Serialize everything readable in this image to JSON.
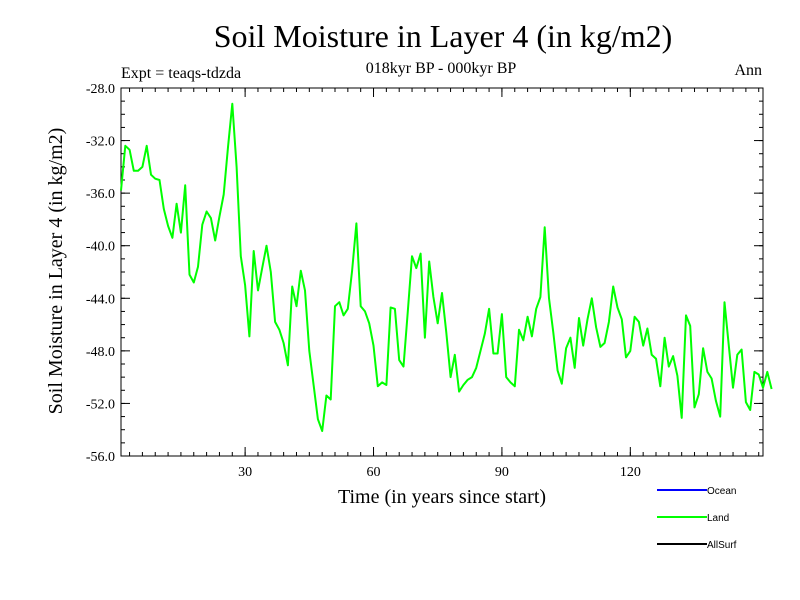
{
  "chart_data": {
    "type": "line",
    "title": "Soil Moisture in Layer 4 (in kg/m2)",
    "subtitle": "018kyr BP - 000kyr BP",
    "experiment_label": "Expt = teaqs-tdzda",
    "season_label": "Ann",
    "xlabel": "Time (in years since start)",
    "ylabel": "Soil Moisture in Layer 4 (in kg/m2)",
    "xlim": [
      1,
      151
    ],
    "ylim": [
      -56,
      -28
    ],
    "xticks": [
      30,
      60,
      90,
      120
    ],
    "xtick_labels": [
      "30",
      "60",
      "90",
      "120"
    ],
    "yticks": [
      -28,
      -32,
      -36,
      -40,
      -44,
      -48,
      -52,
      -56
    ],
    "ytick_labels": [
      "-28.0",
      "-32.0",
      "-36.0",
      "-40.0",
      "-44.0",
      "-48.0",
      "-52.0",
      "-56.0"
    ],
    "legend": [
      {
        "name": "Ocean",
        "color": "#0000ff"
      },
      {
        "name": "Land",
        "color": "#00ff00"
      },
      {
        "name": "AllSurf",
        "color": "#000000"
      }
    ],
    "legend_position": "bottom-right",
    "series": [
      {
        "name": "Land",
        "color": "#00ff00",
        "x_start": 1,
        "x_step": 1,
        "values": [
          -35.8,
          -32.4,
          -32.7,
          -34.3,
          -34.3,
          -34.0,
          -32.4,
          -34.6,
          -34.9,
          -35.0,
          -37.2,
          -38.5,
          -39.4,
          -36.8,
          -39.0,
          -35.4,
          -42.2,
          -42.8,
          -41.6,
          -38.4,
          -37.4,
          -37.9,
          -39.6,
          -37.8,
          -36.1,
          -32.5,
          -29.2,
          -34.0,
          -40.8,
          -43.0,
          -46.9,
          -40.4,
          -43.4,
          -41.7,
          -40.0,
          -42.0,
          -45.8,
          -46.4,
          -47.4,
          -49.1,
          -43.1,
          -44.6,
          -41.9,
          -43.4,
          -48.0,
          -50.6,
          -53.2,
          -54.1,
          -51.4,
          -51.7,
          -44.6,
          -44.3,
          -45.3,
          -44.8,
          -41.9,
          -38.3,
          -44.6,
          -45.0,
          -45.9,
          -47.6,
          -50.7,
          -50.4,
          -50.6,
          -44.7,
          -44.8,
          -48.7,
          -49.2,
          -45.0,
          -40.8,
          -41.7,
          -40.6,
          -47.0,
          -41.2,
          -43.9,
          -45.9,
          -43.6,
          -46.6,
          -50.0,
          -48.3,
          -51.1,
          -50.6,
          -50.2,
          -50.0,
          -49.3,
          -48.0,
          -46.7,
          -44.8,
          -48.2,
          -48.2,
          -45.2,
          -50.0,
          -50.4,
          -50.7,
          -46.4,
          -47.2,
          -45.4,
          -46.9,
          -44.8,
          -43.9,
          -38.6,
          -44.0,
          -46.6,
          -49.5,
          -50.5,
          -47.8,
          -47.0,
          -49.3,
          -45.5,
          -47.6,
          -45.6,
          -44.0,
          -46.2,
          -47.7,
          -47.4,
          -45.8,
          -43.1,
          -44.7,
          -45.6,
          -48.5,
          -48.0,
          -45.4,
          -45.8,
          -47.6,
          -46.3,
          -48.3,
          -48.6,
          -50.7,
          -47.0,
          -49.2,
          -48.4,
          -49.9,
          -53.1,
          -45.3,
          -46.1,
          -52.3,
          -51.3,
          -47.8,
          -49.6,
          -50.1,
          -51.8,
          -53.0,
          -44.3,
          -47.6,
          -50.8,
          -48.3,
          -47.9,
          -51.9,
          -52.5,
          -49.6,
          -49.8,
          -50.8,
          -49.6,
          -50.9
        ]
      }
    ]
  }
}
